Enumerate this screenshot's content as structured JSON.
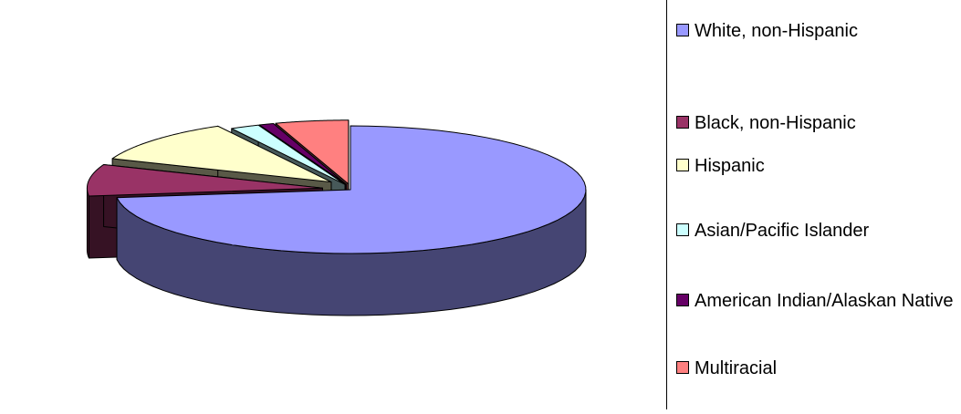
{
  "chart_data": {
    "type": "pie",
    "style": "3d-exploded",
    "title": "",
    "categories": [
      "White, non-Hispanic",
      "Black, non-Hispanic",
      "Hispanic",
      "Asian/Pacific Islander",
      "American Indian/Alaskan Native",
      "Multiracial"
    ],
    "values": [
      73,
      8,
      11,
      2,
      1,
      5
    ],
    "unit": "percent (estimated)",
    "colors": [
      "#9999ff",
      "#993366",
      "#ffffcc",
      "#ccffff",
      "#660066",
      "#ff8080"
    ],
    "legend_position": "right"
  },
  "legend": {
    "items": [
      {
        "label": "White, non-Hispanic",
        "color": "#9999ff"
      },
      {
        "label": "Black, non-Hispanic",
        "color": "#993366"
      },
      {
        "label": "Hispanic",
        "color": "#ffffcc"
      },
      {
        "label": "Asian/Pacific Islander",
        "color": "#ccffff"
      },
      {
        "label": "American Indian/Alaskan Native",
        "color": "#660066"
      },
      {
        "label": "Multiracial",
        "color": "#ff8080"
      }
    ]
  }
}
